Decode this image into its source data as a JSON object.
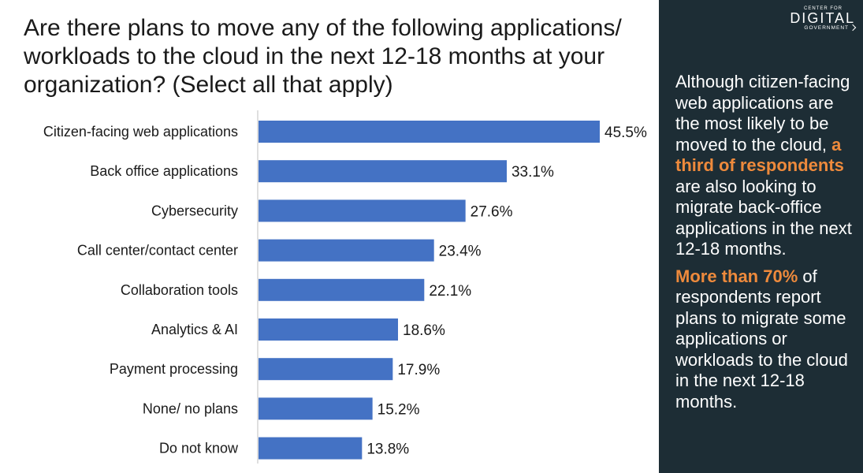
{
  "title": "Are there plans to move any of the following applications/ workloads to the cloud in the next 12-18 months at your organization? (Select all that apply)",
  "chart_data": {
    "type": "bar",
    "orientation": "horizontal",
    "categories": [
      "Citizen-facing web applications",
      "Back office applications",
      "Cybersecurity",
      "Call center/contact center",
      "Collaboration tools",
      "Analytics & AI",
      "Payment processing",
      "None/ no plans",
      "Do not know"
    ],
    "values": [
      45.5,
      33.1,
      27.6,
      23.4,
      22.1,
      18.6,
      17.9,
      15.2,
      13.8
    ],
    "value_labels": [
      "45.5%",
      "33.1%",
      "27.6%",
      "23.4%",
      "22.1%",
      "18.6%",
      "17.9%",
      "15.2%",
      "13.8%"
    ],
    "xlim": [
      0,
      45.5
    ],
    "grid": false,
    "bar_color": "#4472c4"
  },
  "logo": {
    "line1": "CENTER FOR",
    "line2": "DIGITAL",
    "line3": "GOVERNMENT"
  },
  "insight": {
    "p1_pre": "Although citizen-facing web applications are the most likely to be moved to the cloud,",
    "p1_highlight": "a third of respondents",
    "p1_post": "are also looking to migrate back-office applications in the next 12-18 months.",
    "p2_highlight": "More than 70%",
    "p2_post": "of respondents report plans to migrate some applications or workloads to the cloud in the next 12-18 months."
  },
  "colors": {
    "panel_bg": "#1d2d35",
    "highlight": "#ee8a3c",
    "bar": "#4472c4"
  }
}
